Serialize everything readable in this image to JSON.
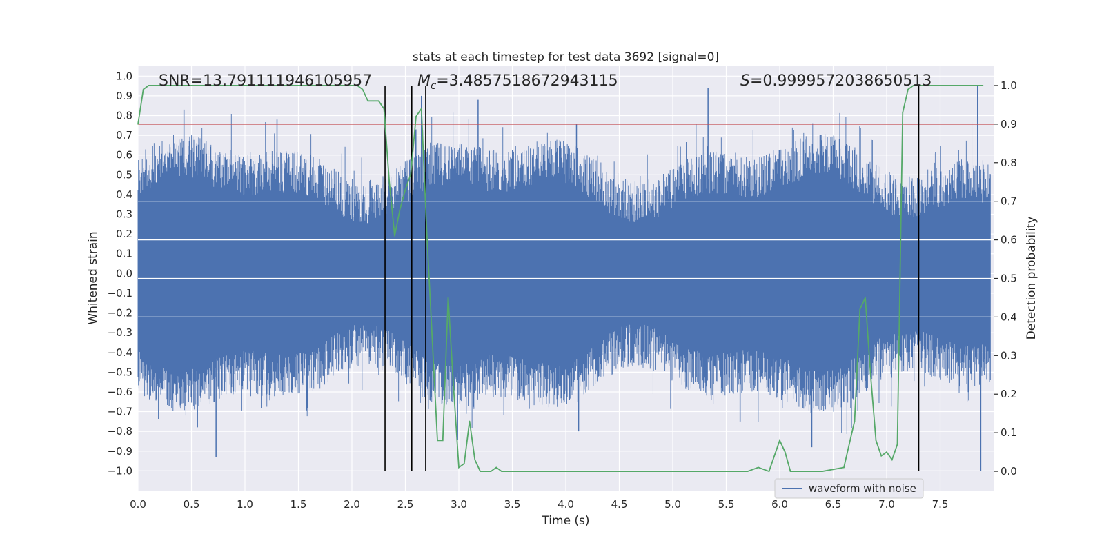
{
  "chart_data": {
    "type": "line",
    "title": "stats at each timestep for test data 3692 [signal=0]",
    "xlabel": "Time (s)",
    "ylabel": "Whitened strain",
    "ylabel_right": "Detection probability",
    "xlim": [
      0.0,
      8.0
    ],
    "ylim": [
      -1.1,
      1.05
    ],
    "ylim_right": [
      -0.05,
      1.05
    ],
    "x_ticks": [
      0.0,
      0.5,
      1.0,
      1.5,
      2.0,
      2.5,
      3.0,
      3.5,
      4.0,
      4.5,
      5.0,
      5.5,
      6.0,
      6.5,
      7.0,
      7.5
    ],
    "x_tick_labels": [
      "0.0",
      "0.5",
      "1.0",
      "1.5",
      "2.0",
      "2.5",
      "3.0",
      "3.5",
      "4.0",
      "4.5",
      "5.0",
      "5.5",
      "6.0",
      "6.5",
      "7.0",
      "7.5"
    ],
    "y_ticks": [
      -1.0,
      -0.9,
      -0.8,
      -0.7,
      -0.6,
      -0.5,
      -0.4,
      -0.3,
      -0.2,
      -0.1,
      0.0,
      0.1,
      0.2,
      0.3,
      0.4,
      0.5,
      0.6,
      0.7,
      0.8,
      0.9,
      1.0
    ],
    "y_tick_labels": [
      "−1.0",
      "−0.9",
      "−0.8",
      "−0.7",
      "−0.6",
      "−0.5",
      "−0.4",
      "−0.3",
      "−0.2",
      "−0.1",
      "0.0",
      "0.1",
      "0.2",
      "0.3",
      "0.4",
      "0.5",
      "0.6",
      "0.7",
      "0.8",
      "0.9",
      "1.0"
    ],
    "y_ticks_right": [
      0.0,
      0.1,
      0.2,
      0.3,
      0.4,
      0.5,
      0.6,
      0.7,
      0.8,
      0.9,
      1.0
    ],
    "y_tick_labels_right": [
      "0.0",
      "0.1",
      "0.2",
      "0.3",
      "0.4",
      "0.5",
      "0.6",
      "0.7",
      "0.8",
      "0.9",
      "1.0"
    ],
    "annotations": {
      "snr": "SNR=13.791111946105957",
      "mc_symbol": "M",
      "mc_sub": "c",
      "mc_value": "=3.4857518672943115",
      "s_symbol": "S",
      "s_value": "=0.9999572038650513"
    },
    "threshold": {
      "value": 0.9,
      "axis": "right",
      "color": "#c44e52"
    },
    "vertical_lines": [
      2.31,
      2.56,
      2.69,
      7.3
    ],
    "legend": {
      "label": "waveform with noise",
      "placement": "lower-right"
    },
    "series": [
      {
        "name": "waveform with noise",
        "axis": "left",
        "color": "#4c72b0",
        "kind": "dense noise, envelope approx +/-0.55 with spikes to +/-0.95",
        "spikes": [
          {
            "x": 0.43,
            "y": 0.83
          },
          {
            "x": 0.73,
            "y": -0.93
          },
          {
            "x": 1.3,
            "y": 0.78
          },
          {
            "x": 2.65,
            "y": 0.9
          },
          {
            "x": 3.18,
            "y": 0.88
          },
          {
            "x": 4.1,
            "y": 0.76
          },
          {
            "x": 4.12,
            "y": -0.8
          },
          {
            "x": 5.33,
            "y": 0.94
          },
          {
            "x": 5.63,
            "y": -0.75
          },
          {
            "x": 6.3,
            "y": -0.88
          },
          {
            "x": 7.85,
            "y": 0.95
          },
          {
            "x": 7.88,
            "y": -1.0
          }
        ]
      },
      {
        "name": "detection probability",
        "axis": "right",
        "color": "#55a868",
        "x": [
          0.0,
          0.05,
          0.1,
          0.5,
          1.0,
          1.5,
          2.0,
          2.05,
          2.1,
          2.15,
          2.2,
          2.25,
          2.3,
          2.35,
          2.4,
          2.45,
          2.5,
          2.55,
          2.6,
          2.65,
          2.7,
          2.75,
          2.8,
          2.85,
          2.9,
          2.95,
          3.0,
          3.05,
          3.1,
          3.15,
          3.2,
          3.25,
          3.3,
          3.35,
          3.4,
          3.45,
          3.5,
          3.55,
          4.0,
          4.5,
          5.0,
          5.2,
          5.5,
          5.7,
          5.8,
          5.9,
          6.0,
          6.05,
          6.1,
          6.2,
          6.4,
          6.6,
          6.7,
          6.75,
          6.8,
          6.85,
          6.9,
          6.95,
          7.0,
          7.05,
          7.1,
          7.15,
          7.2,
          7.25,
          7.3,
          7.35,
          7.4,
          7.45,
          7.5,
          7.9
        ],
        "values": [
          0.9,
          0.99,
          1.0,
          1.0,
          1.0,
          1.0,
          1.0,
          1.0,
          0.99,
          0.96,
          0.96,
          0.96,
          0.94,
          0.75,
          0.61,
          0.68,
          0.73,
          0.77,
          0.92,
          0.94,
          0.62,
          0.35,
          0.08,
          0.08,
          0.45,
          0.22,
          0.01,
          0.02,
          0.13,
          0.03,
          0.0,
          0.0,
          0.0,
          0.01,
          0.0,
          0.0,
          0.0,
          0.0,
          0.0,
          0.0,
          0.0,
          0.0,
          0.0,
          0.0,
          0.01,
          0.0,
          0.08,
          0.05,
          0.0,
          0.0,
          0.0,
          0.01,
          0.13,
          0.42,
          0.45,
          0.25,
          0.08,
          0.04,
          0.05,
          0.03,
          0.07,
          0.93,
          0.99,
          1.0,
          1.0,
          1.0,
          1.0,
          1.0,
          1.0,
          1.0
        ]
      }
    ]
  }
}
